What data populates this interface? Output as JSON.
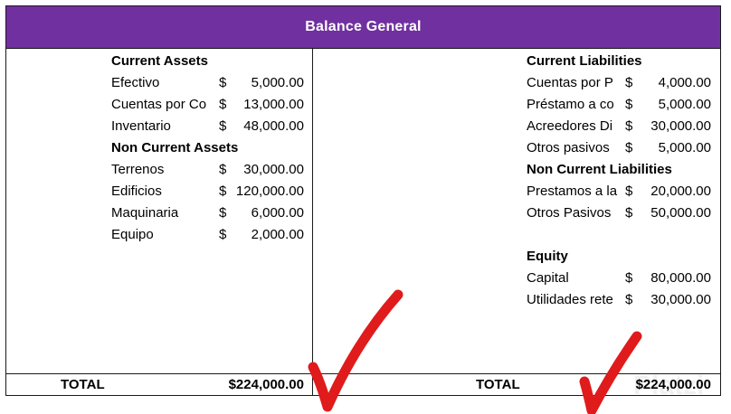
{
  "colors": {
    "title_bg": "#7030a0",
    "checkmark": "#e01b1b"
  },
  "title": "Balance General",
  "assets": {
    "current_heading": "Current Assets",
    "current_rows": [
      {
        "label": "Efectivo",
        "currency": "$",
        "amount": "5,000.00"
      },
      {
        "label": "Cuentas por Co",
        "currency": "$",
        "amount": "13,000.00"
      },
      {
        "label": "Inventario",
        "currency": "$",
        "amount": "48,000.00"
      }
    ],
    "noncurrent_heading": "Non Current Assets",
    "noncurrent_rows": [
      {
        "label": "Terrenos",
        "currency": "$",
        "amount": "30,000.00"
      },
      {
        "label": "Edificios",
        "currency": "$",
        "amount": "120,000.00"
      },
      {
        "label": "Maquinaria",
        "currency": "$",
        "amount": "6,000.00"
      },
      {
        "label": "Equipo",
        "currency": "$",
        "amount": "2,000.00"
      }
    ],
    "total_label": "TOTAL",
    "total_value": "$224,000.00"
  },
  "liabilities": {
    "current_heading": "Current Liabilities",
    "current_rows": [
      {
        "label": "Cuentas por P",
        "currency": "$",
        "amount": "4,000.00"
      },
      {
        "label": "Préstamo a co",
        "currency": "$",
        "amount": "5,000.00"
      },
      {
        "label": "Acreedores Di",
        "currency": "$",
        "amount": "30,000.00"
      },
      {
        "label": "Otros pasivos",
        "currency": "$",
        "amount": "5,000.00"
      }
    ],
    "noncurrent_heading": "Non Current Liabilities",
    "noncurrent_rows": [
      {
        "label": "Prestamos a la",
        "currency": "$",
        "amount": "20,000.00"
      },
      {
        "label": "Otros Pasivos",
        "currency": "$",
        "amount": "50,000.00"
      }
    ],
    "equity_heading": "Equity",
    "equity_rows": [
      {
        "label": "Capital",
        "currency": "$",
        "amount": "80,000.00"
      },
      {
        "label": "Utilidades rete",
        "currency": "$",
        "amount": "30,000.00"
      }
    ],
    "total_label": "TOTAL",
    "total_value": "$224,000.00"
  },
  "watermark": "Platzi"
}
